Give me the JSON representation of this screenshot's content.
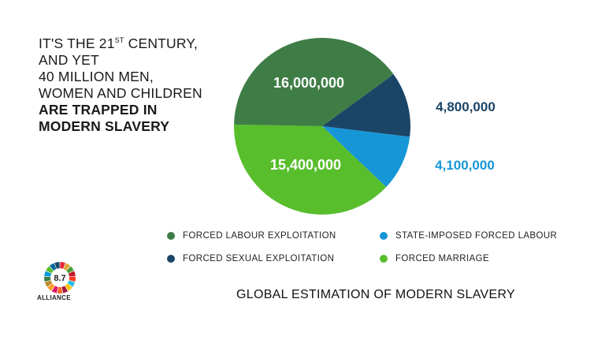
{
  "headline": {
    "line1_pre": "IT'S THE 21",
    "line1_sup": "ST",
    "line1_post": " CENTURY,",
    "line2": "AND YET",
    "line3": "40 MILLION MEN,",
    "line4": "WOMEN AND CHILDREN",
    "line5": "ARE TRAPPED IN",
    "line6": "MODERN SLAVERY"
  },
  "chart_data": {
    "type": "pie",
    "title": "GLOBAL ESTIMATION OF MODERN SLAVERY",
    "legend_position": "bottom",
    "slices": [
      {
        "label": "FORCED LABOUR EXPLOITATION",
        "value": 16000000,
        "display": "16,000,000",
        "color": "#3f7d46",
        "label_color": "#ffffff"
      },
      {
        "label": "FORCED SEXUAL EXPLOITATION",
        "value": 4800000,
        "display": "4,800,000",
        "color": "#1b4567",
        "label_color": "#1b4567"
      },
      {
        "label": "STATE-IMPOSED FORCED LABOUR",
        "value": 4100000,
        "display": "4,100,000",
        "color": "#1796d7",
        "label_color": "#1796d7"
      },
      {
        "label": "FORCED MARRIAGE",
        "value": 15400000,
        "display": "15,400,000",
        "color": "#58be2c",
        "label_color": "#ffffff"
      }
    ]
  },
  "logo": {
    "number": "8.7",
    "text": "ALLIANCE",
    "ring_colors": [
      "#e5243b",
      "#dda63a",
      "#4c9f38",
      "#c5192d",
      "#ff3a21",
      "#26bde2",
      "#fcc30b",
      "#a21942",
      "#fd6925",
      "#dd1367",
      "#fd9d24",
      "#bf8b2e",
      "#3f7e44",
      "#0a97d9",
      "#56c02b",
      "#00689d",
      "#19486a"
    ]
  }
}
